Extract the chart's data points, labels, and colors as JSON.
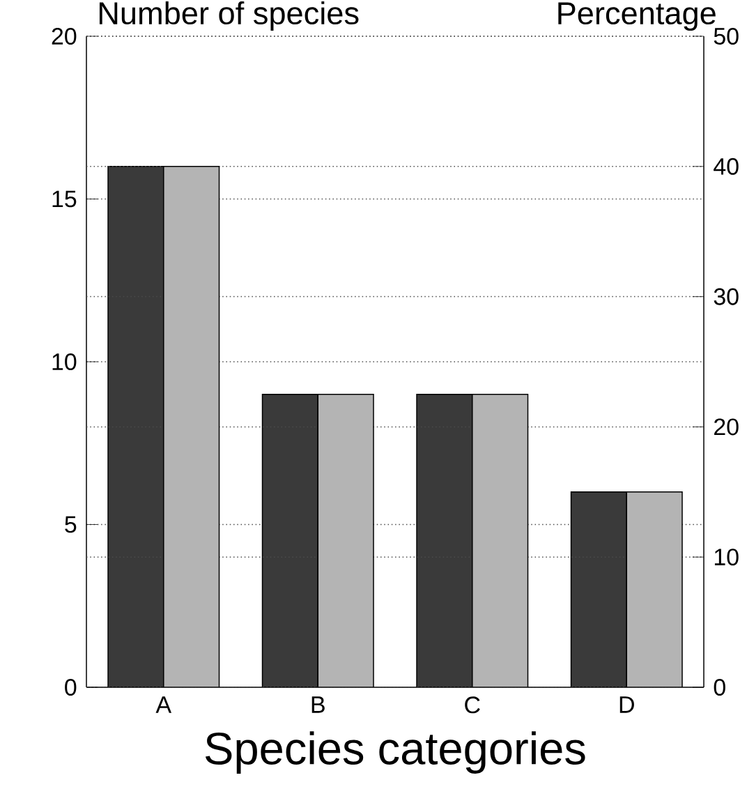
{
  "chart_data": {
    "type": "bar",
    "xlabel": "Species categories",
    "ylabel": "Number of species",
    "y2label": "Percentage",
    "categories": [
      "A",
      "B",
      "C",
      "D"
    ],
    "series": [
      {
        "color": "#3a3a3a",
        "values": [
          16,
          9,
          9,
          6
        ]
      },
      {
        "color": "#b4b4b4",
        "values": [
          40,
          22.5,
          22.5,
          15
        ],
        "axis": "y2"
      }
    ],
    "ylim": [
      0,
      20
    ],
    "yticks": [
      0,
      5,
      10,
      15,
      20
    ],
    "y2lim": [
      0,
      50
    ],
    "y2ticks": [
      0,
      10,
      20,
      30,
      40,
      50
    ],
    "grid": "y"
  }
}
